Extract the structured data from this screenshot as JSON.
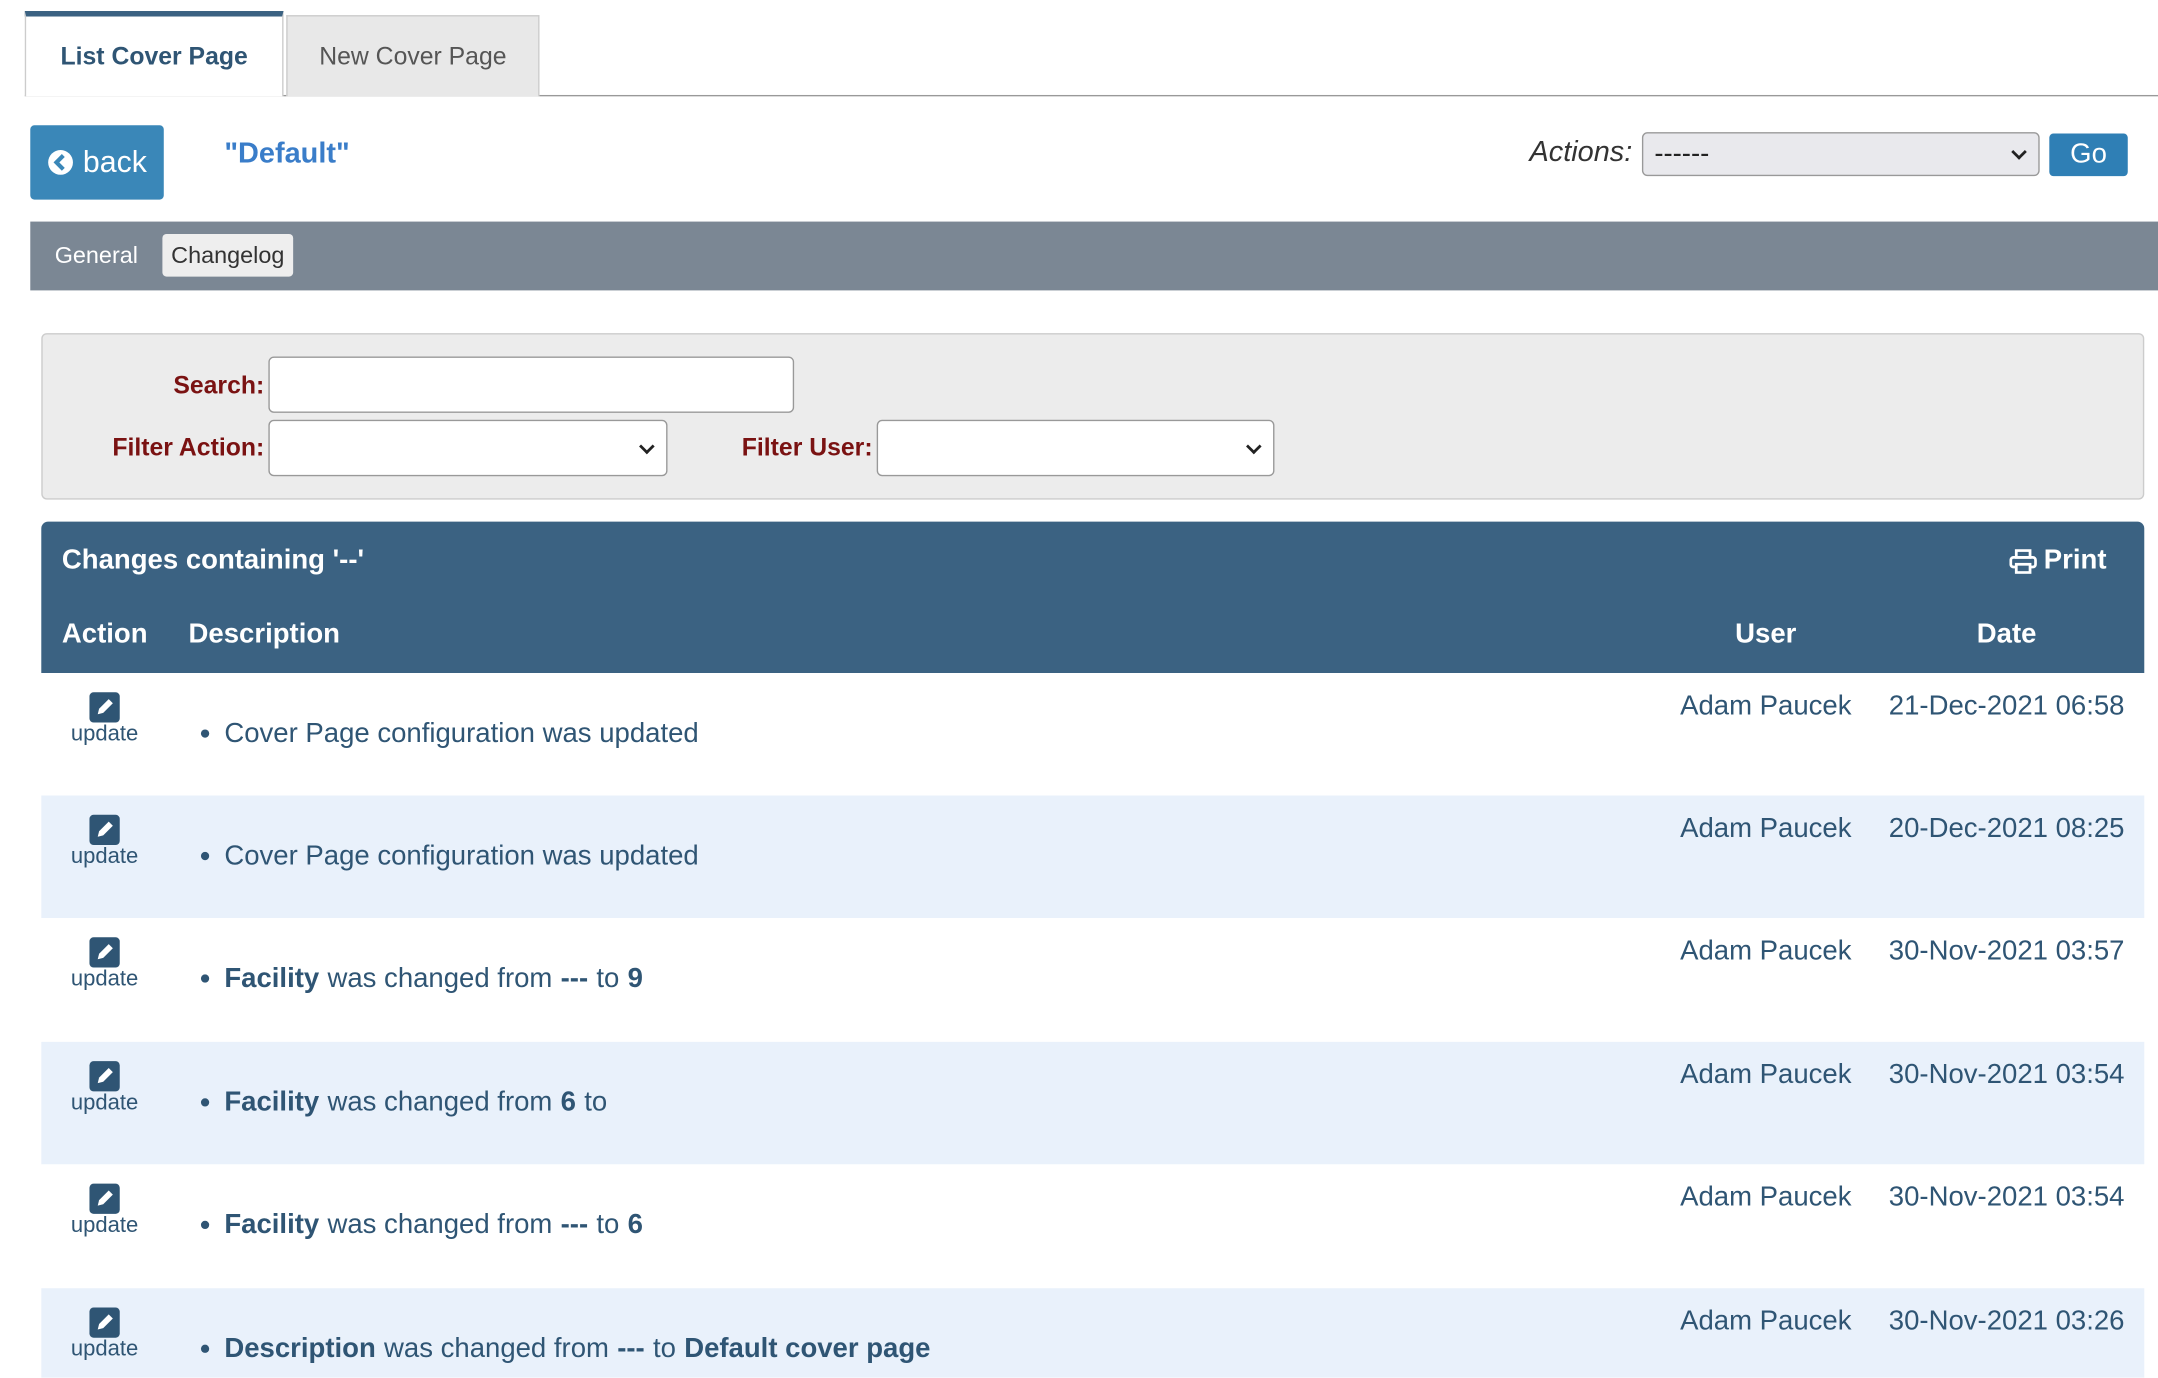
{
  "tabs": [
    {
      "label": "List Cover Page",
      "active": true
    },
    {
      "label": "New Cover Page",
      "active": false
    }
  ],
  "header": {
    "back": "back",
    "title": "\"Default\"",
    "actions_label": "Actions:",
    "actions_value": "------",
    "go": "Go"
  },
  "subtabs": [
    {
      "label": "General",
      "active": false
    },
    {
      "label": "Changelog",
      "active": true
    }
  ],
  "filters": {
    "search": "Search:",
    "filter_action": "Filter Action:",
    "filter_user": "Filter User:"
  },
  "table": {
    "title": "Changes containing '--'",
    "print": "Print",
    "columns": [
      "Action",
      "Description",
      "User",
      "Date"
    ],
    "rows": [
      {
        "action": "update",
        "description": [
          {
            "text": "Cover Page configuration was updated",
            "bold": false
          }
        ],
        "user": "Adam Paucek",
        "date": "21-Dec-2021 06:58"
      },
      {
        "action": "update",
        "description": [
          {
            "text": "Cover Page configuration was updated",
            "bold": false
          }
        ],
        "user": "Adam Paucek",
        "date": "20-Dec-2021 08:25"
      },
      {
        "action": "update",
        "description": [
          {
            "text": "Facility",
            "bold": true
          },
          {
            "text": "was changed from",
            "bold": false
          },
          {
            "text": "---",
            "bold": true
          },
          {
            "text": "to",
            "bold": false
          },
          {
            "text": "9",
            "bold": true
          }
        ],
        "user": "Adam Paucek",
        "date": "30-Nov-2021 03:57"
      },
      {
        "action": "update",
        "description": [
          {
            "text": "Facility",
            "bold": true
          },
          {
            "text": "was changed from",
            "bold": false
          },
          {
            "text": "6",
            "bold": true
          },
          {
            "text": "to",
            "bold": false
          }
        ],
        "user": "Adam Paucek",
        "date": "30-Nov-2021 03:54"
      },
      {
        "action": "update",
        "description": [
          {
            "text": "Facility",
            "bold": true
          },
          {
            "text": "was changed from",
            "bold": false
          },
          {
            "text": "---",
            "bold": true
          },
          {
            "text": "to",
            "bold": false
          },
          {
            "text": "6",
            "bold": true
          }
        ],
        "user": "Adam Paucek",
        "date": "30-Nov-2021 03:54"
      },
      {
        "action": "update",
        "description": [
          {
            "text": "Description",
            "bold": true
          },
          {
            "text": "was changed from",
            "bold": false
          },
          {
            "text": "---",
            "bold": true
          },
          {
            "text": "to",
            "bold": false
          },
          {
            "text": "Default cover page",
            "bold": true
          }
        ],
        "user": "Adam Paucek",
        "date": "30-Nov-2021 03:26"
      }
    ]
  }
}
